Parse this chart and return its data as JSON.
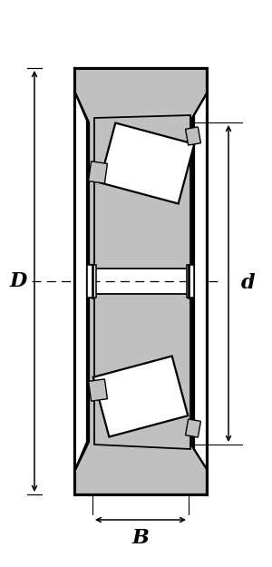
{
  "bg_color": "#ffffff",
  "line_color": "#000000",
  "gray_fill": "#c0c0c0",
  "white_fill": "#ffffff",
  "fig_width": 3.0,
  "fig_height": 6.25,
  "dpi": 100,
  "label_D": "D",
  "label_d": "d",
  "label_B": "B",
  "lw_main": 1.6,
  "lw_border": 2.2,
  "lw_dim": 1.1
}
